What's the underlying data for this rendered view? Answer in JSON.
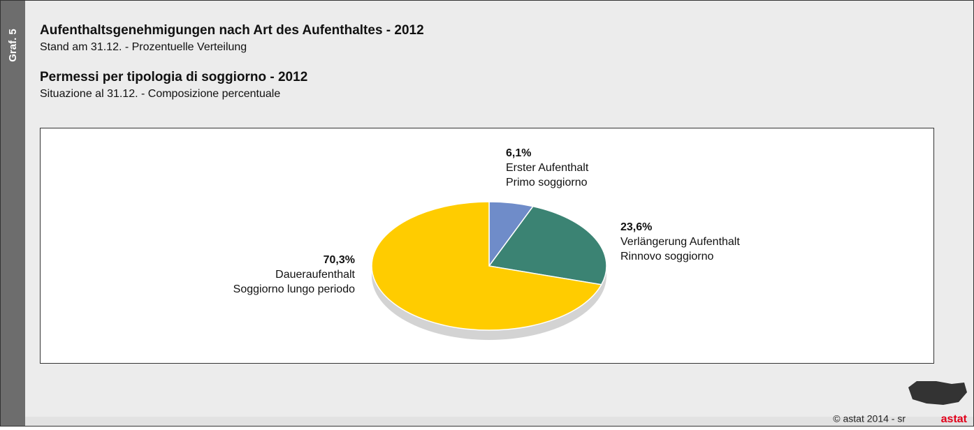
{
  "side_label": "Graf. 5",
  "chart_data": {
    "type": "pie",
    "title": "Aufenthaltsgenehmigungen nach Art des Aufenthaltes - 2012",
    "subtitle": "Stand am 31.12. - Prozentuelle Verteilung",
    "title_it": "Permessi per tipologia di soggiorno - 2012",
    "subtitle_it": "Situazione al 31.12. - Composizione percentuale",
    "categories": [
      "Erster Aufenthalt",
      "Verlängerung Aufenthalt",
      "Daueraufenthalt"
    ],
    "categories_it": [
      "Primo soggiorno",
      "Rinnovo soggiorno",
      "Soggiorno lungo periodo"
    ],
    "values": [
      6.1,
      23.6,
      70.3
    ],
    "value_labels": [
      "6,1%",
      "23,6%",
      "70,3%"
    ],
    "colors": [
      "#6f8cc9",
      "#3b8373",
      "#ffcc00"
    ]
  },
  "footer": {
    "copyright": "© astat 2014 - sr",
    "logo": "astat"
  }
}
